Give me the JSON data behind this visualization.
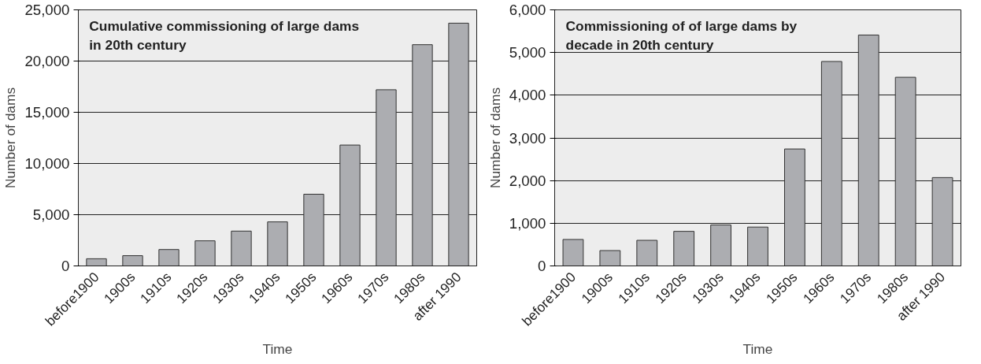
{
  "chart_data": [
    {
      "type": "bar",
      "title": "Cumulative commissioning of large dams\nin 20th century",
      "xlabel": "Time",
      "ylabel": "Number of dams",
      "categories": [
        "before1900",
        "1900s",
        "1910s",
        "1920s",
        "1930s",
        "1940s",
        "1950s",
        "1960s",
        "1970s",
        "1980s",
        "after 1990"
      ],
      "values": [
        700,
        1000,
        1600,
        2450,
        3400,
        4300,
        7000,
        11800,
        17200,
        21600,
        23700
      ],
      "color": "#acadb1",
      "ylim": [
        0,
        25000
      ],
      "yticks": [
        {
          "value": 0,
          "label": "0"
        },
        {
          "value": 5000,
          "label": "5,000"
        },
        {
          "value": 10000,
          "label": "10,000"
        },
        {
          "value": 15000,
          "label": "15,000"
        },
        {
          "value": 20000,
          "label": "20,000"
        },
        {
          "value": 25000,
          "label": "25,000"
        }
      ],
      "grid": "y"
    },
    {
      "type": "bar",
      "title": "Commissioning of of large dams by\ndecade in 20th century",
      "xlabel": "Time",
      "ylabel": "Number of dams",
      "categories": [
        "before1900",
        "1900s",
        "1910s",
        "1920s",
        "1930s",
        "1940s",
        "1950s",
        "1960s",
        "1970s",
        "1980s",
        "after 1990"
      ],
      "values": [
        620,
        360,
        600,
        810,
        960,
        910,
        2740,
        4790,
        5410,
        4420,
        2070
      ],
      "color": "#acadb1",
      "ylim": [
        0,
        6000
      ],
      "yticks": [
        {
          "value": 0,
          "label": "0"
        },
        {
          "value": 1000,
          "label": "1,000"
        },
        {
          "value": 2000,
          "label": "2,000"
        },
        {
          "value": 3000,
          "label": "3,000"
        },
        {
          "value": 4000,
          "label": "4,000"
        },
        {
          "value": 5000,
          "label": "5,000"
        },
        {
          "value": 6000,
          "label": "6,000"
        }
      ],
      "grid": "y"
    }
  ]
}
